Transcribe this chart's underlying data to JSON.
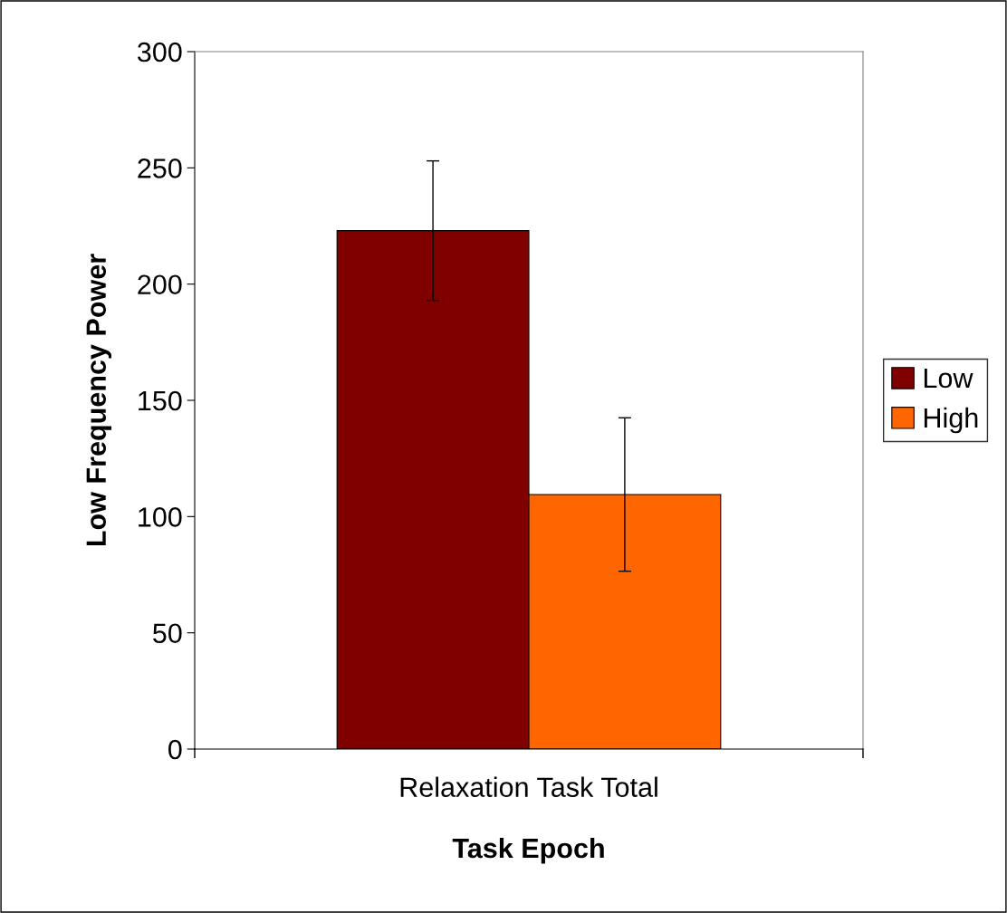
{
  "chart_data": {
    "type": "bar",
    "xlabel": "Task Epoch",
    "ylabel": "Low Frequency Power",
    "categories": [
      "Relaxation Task Total"
    ],
    "series": [
      {
        "name": "Low",
        "color": "#800000",
        "values": [
          223
        ],
        "errors": [
          30
        ]
      },
      {
        "name": "High",
        "color": "#ff6600",
        "values": [
          109.5
        ],
        "errors": [
          33
        ]
      }
    ],
    "ylim": [
      0,
      300
    ],
    "yticks": [
      0,
      50,
      100,
      150,
      200,
      250,
      300
    ],
    "grid": false,
    "legend": "right"
  }
}
